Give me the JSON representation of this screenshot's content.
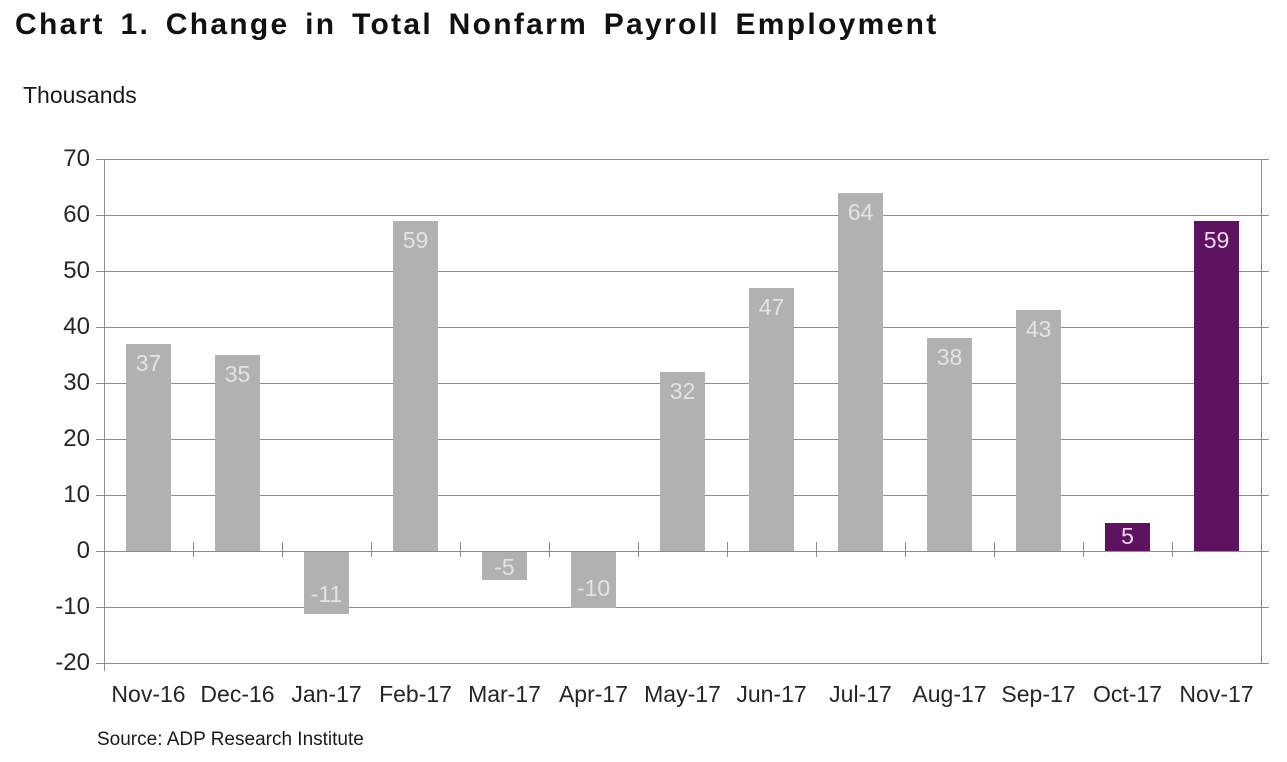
{
  "title": "Chart 1. Change in Total Nonfarm Payroll Employment",
  "units_label": "Thousands",
  "source": "Source: ADP Research Institute",
  "colors": {
    "bar_default": "#b1b1b1",
    "bar_highlight": "#5e1360",
    "grid": "#8c8c8c",
    "value_label_on_default": "#e4e4e4",
    "value_label_on_highlight": "#ecd7ec",
    "text": "#262626"
  },
  "chart_data": {
    "type": "bar",
    "title": "Chart 1. Change in Total Nonfarm Payroll Employment",
    "ylabel": "Thousands",
    "categories": [
      "Nov-16",
      "Dec-16",
      "Jan-17",
      "Feb-17",
      "Mar-17",
      "Apr-17",
      "May-17",
      "Jun-17",
      "Jul-17",
      "Aug-17",
      "Sep-17",
      "Oct-17",
      "Nov-17"
    ],
    "values": [
      37,
      35,
      -11,
      59,
      -5,
      -10,
      32,
      47,
      64,
      38,
      43,
      5,
      59
    ],
    "highlighted_indices": [
      11,
      12
    ],
    "ylim": [
      -20,
      70
    ],
    "ytick_step": 10,
    "grid": true,
    "legend": false,
    "source": "Source: ADP Research Institute"
  }
}
